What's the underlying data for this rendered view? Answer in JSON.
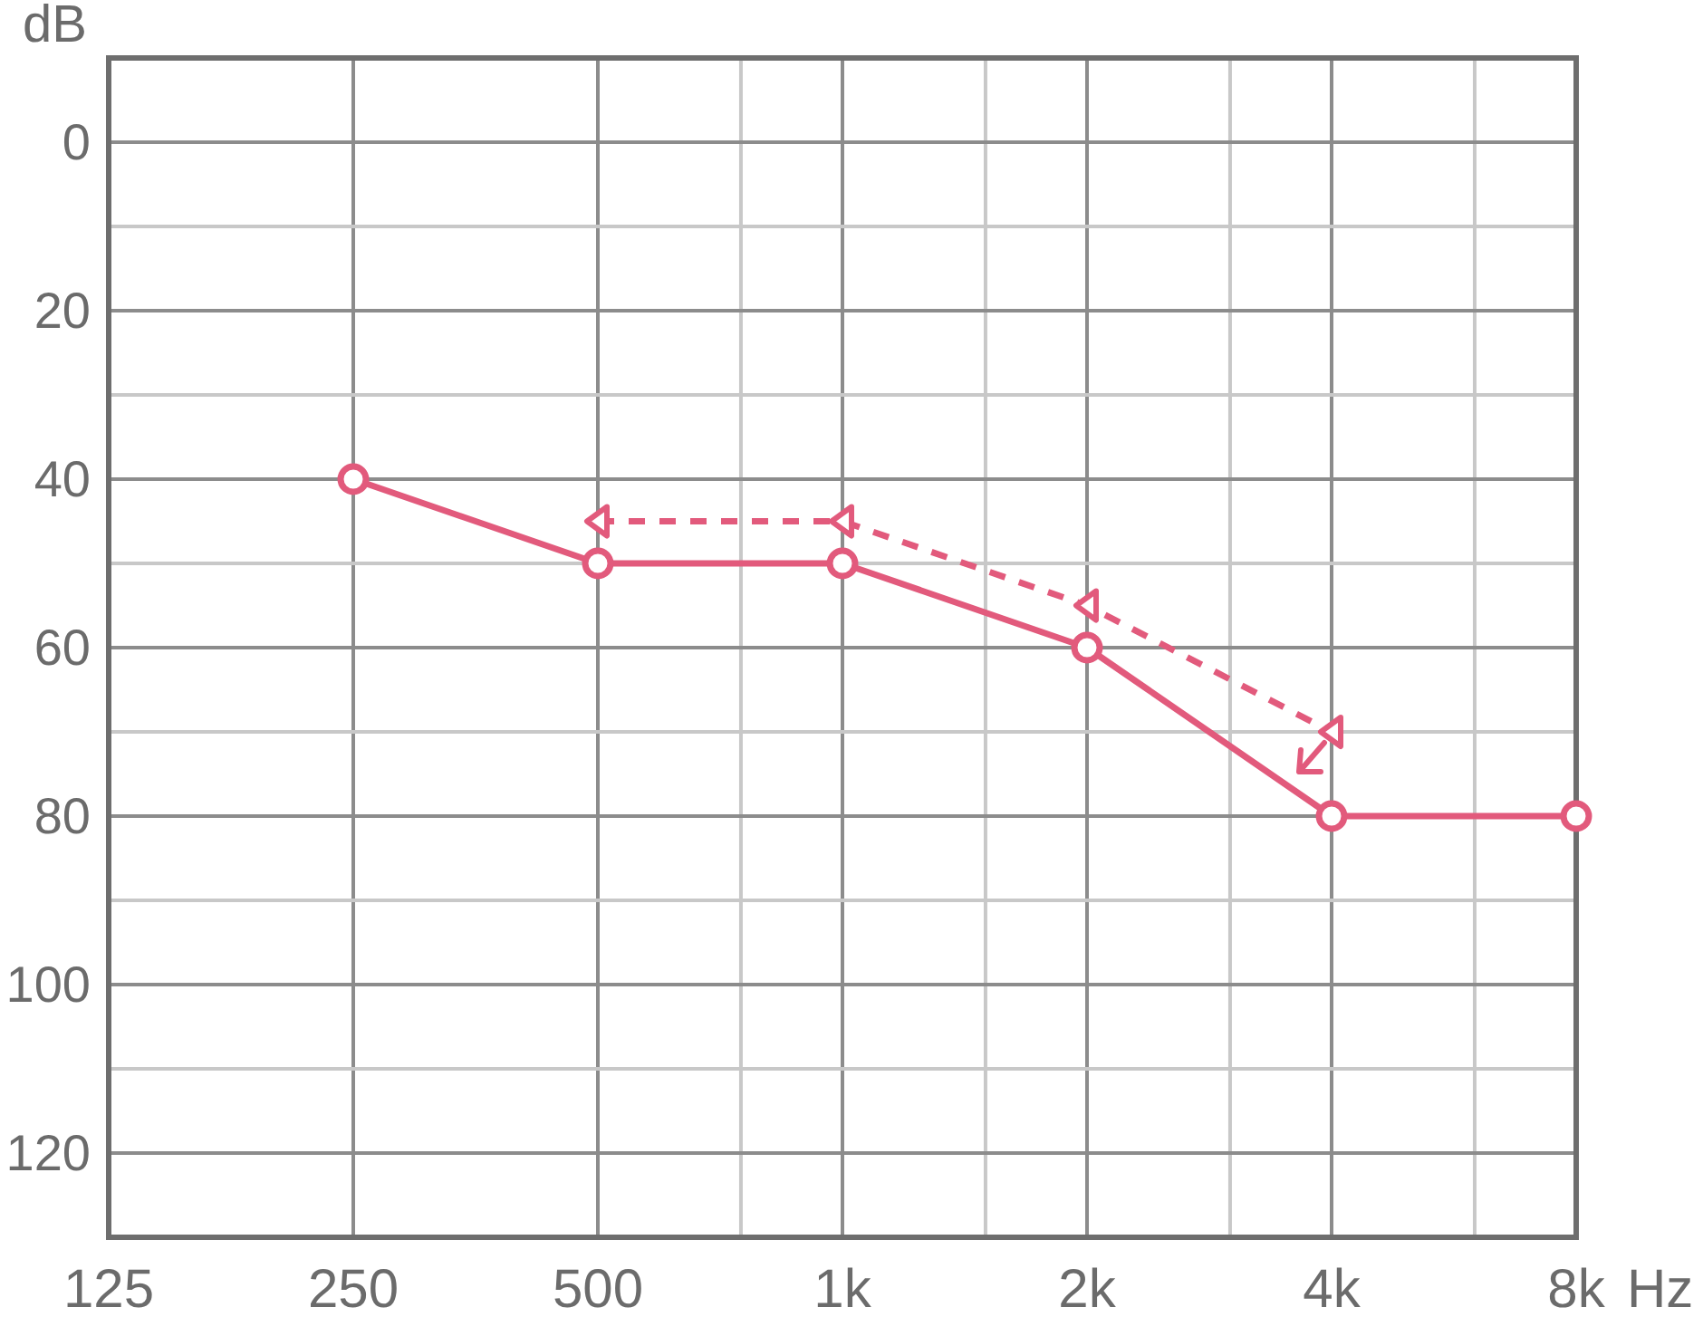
{
  "chart_data": {
    "type": "line",
    "xlabel": "Hz",
    "ylabel": "dB",
    "log": "x",
    "grid": true,
    "xlim": [
      125,
      8000
    ],
    "xticks": [
      125,
      250,
      500,
      {
        "value": 750,
        "label": null
      },
      {
        "value": 1000,
        "label": "1k"
      },
      {
        "value": 1500,
        "label": null
      },
      {
        "value": 2000,
        "label": "2k"
      },
      {
        "value": 3000,
        "label": null
      },
      {
        "value": 4000,
        "label": "4k"
      },
      {
        "value": 6000,
        "label": null
      },
      {
        "value": 8000,
        "label": "8k"
      }
    ],
    "ylim": [
      130,
      -10
    ],
    "yticks": [
      0,
      {
        "value": 10,
        "label": null
      },
      20,
      {
        "value": 30,
        "label": null
      },
      40,
      {
        "value": 50,
        "label": null
      },
      60,
      {
        "value": 70,
        "label": null
      },
      80,
      {
        "value": 90,
        "label": null
      },
      100,
      {
        "value": 110,
        "label": null
      },
      120
    ],
    "x": [
      250,
      500,
      1000,
      2000,
      4000,
      8000
    ],
    "series": [
      {
        "values": [
          40,
          50,
          50,
          60,
          80,
          80
        ],
        "color": "#e25a7c",
        "marker": "circle",
        "line_style": "solid"
      },
      {
        "x": [
          500,
          1000,
          2000,
          4000
        ],
        "values": [
          45,
          45,
          55,
          70
        ],
        "color": "#e25a7c",
        "marker": "triangle",
        "line_style": "dashed"
      }
    ]
  }
}
